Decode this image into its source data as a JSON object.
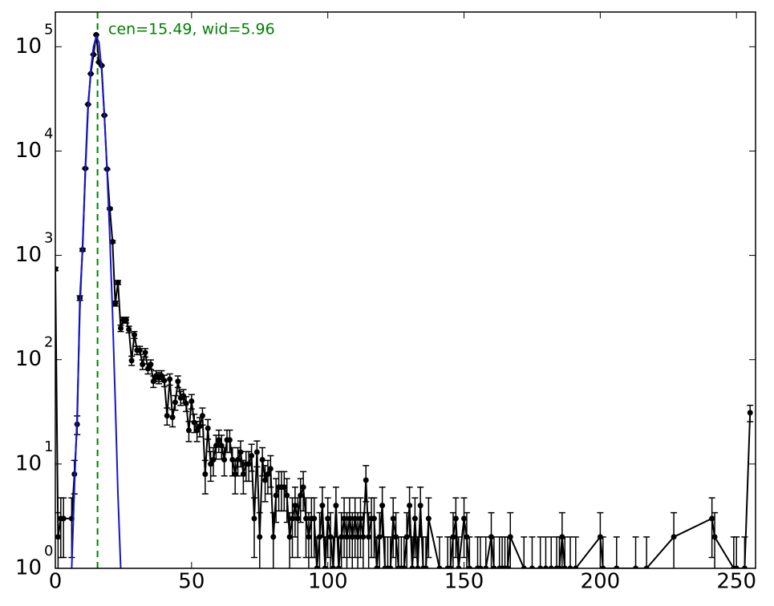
{
  "chart_data": {
    "type": "errorbar",
    "annotation": "cen=15.49, wid=5.96",
    "vline": 15.49,
    "vline_color": "#008000",
    "log_y": true,
    "xlim": [
      0,
      257
    ],
    "ylim": [
      1,
      215000
    ],
    "xticks": [
      0,
      50,
      100,
      150,
      200,
      250
    ],
    "yticks": [
      {
        "value": 1,
        "label": "10",
        "exponent": "0"
      },
      {
        "value": 10,
        "label": "10",
        "exponent": "1"
      },
      {
        "value": 100,
        "label": "10",
        "exponent": "2"
      },
      {
        "value": 1000,
        "label": "10",
        "exponent": "3"
      },
      {
        "value": 10000,
        "label": "10",
        "exponent": "4"
      },
      {
        "value": 100000,
        "label": "10",
        "exponent": "5"
      }
    ],
    "points": {
      "color": "#000000",
      "x": [
        0,
        1,
        2,
        3,
        6,
        7,
        8,
        9,
        10,
        11,
        12,
        13,
        14,
        15,
        16,
        17,
        18,
        19,
        20,
        21,
        22,
        23,
        24,
        25,
        26,
        27,
        28,
        29,
        30,
        31,
        32,
        33,
        34,
        35,
        36,
        37,
        38,
        39,
        40,
        41,
        42,
        43,
        44,
        45,
        46,
        47,
        48,
        49,
        50,
        51,
        52,
        53,
        54,
        55,
        56,
        57,
        58,
        59,
        60,
        61,
        62,
        63,
        64,
        65,
        66,
        67,
        68,
        69,
        70,
        71,
        72,
        73,
        74,
        75,
        76,
        77,
        78,
        79,
        80,
        81,
        82,
        83,
        84,
        85,
        86,
        87,
        88,
        89,
        90,
        91,
        92,
        93,
        94,
        95,
        96,
        97,
        98,
        99,
        100,
        101,
        102,
        103,
        104,
        105,
        106,
        107,
        108,
        109,
        110,
        111,
        112,
        113,
        114,
        115,
        116,
        117,
        118,
        119,
        120,
        121,
        122,
        123,
        124,
        125,
        126,
        127,
        128,
        129,
        130,
        131,
        132,
        133,
        134,
        135,
        136,
        137,
        141,
        144,
        145,
        146,
        147,
        148,
        150,
        151,
        152,
        155,
        156,
        158,
        160,
        161,
        163,
        164,
        165,
        166,
        167,
        172,
        175,
        178,
        180,
        182,
        184,
        185,
        186,
        187,
        189,
        191,
        200,
        201,
        206,
        213,
        217,
        227,
        241,
        242,
        249,
        250,
        253,
        255
      ],
      "values": [
        740,
        2,
        3,
        3,
        3,
        8,
        24,
        390,
        1130,
        6800,
        28000,
        55000,
        84000,
        130000,
        71000,
        66000,
        22000,
        6700,
        2800,
        1350,
        345,
        550,
        200,
        240,
        240,
        195,
        98,
        173,
        123,
        123,
        90,
        117,
        82,
        90,
        62,
        70,
        67,
        70,
        63,
        29,
        65,
        28,
        39,
        62,
        43,
        45,
        38,
        21,
        40,
        25,
        21,
        23,
        29,
        8,
        22,
        10,
        11,
        15,
        17,
        15,
        11,
        17,
        17,
        11,
        8,
        11,
        13,
        8,
        10,
        10,
        12,
        3,
        13,
        2,
        11,
        7,
        8,
        9,
        2,
        5,
        6,
        6,
        6,
        5,
        2,
        3,
        4,
        3,
        5,
        6,
        3,
        2,
        3,
        3,
        1,
        2,
        4,
        1,
        3,
        2,
        1,
        4,
        1,
        2,
        3,
        2,
        3,
        2,
        3,
        2,
        3,
        2,
        7,
        2,
        3,
        3,
        1,
        2,
        4,
        1,
        1,
        1,
        3,
        2,
        1,
        1,
        1,
        2,
        4,
        1,
        3,
        1,
        4,
        1,
        1,
        3,
        1,
        1,
        1,
        2,
        3,
        1,
        3,
        2,
        1,
        1,
        1,
        1,
        2,
        1,
        1,
        1,
        1,
        1,
        2,
        1,
        1,
        1,
        1,
        1,
        1,
        1,
        2,
        1,
        1,
        1,
        2,
        1,
        1,
        1,
        1,
        2,
        3,
        2,
        1,
        1,
        1,
        31
      ],
      "errors": [
        27.2,
        1.41,
        1.73,
        1.73,
        1.73,
        2.83,
        4.9,
        19.75,
        33.62,
        82.46,
        167.3,
        234.5,
        289.8,
        360.6,
        266.5,
        256.9,
        148.3,
        81.85,
        52.92,
        36.74,
        18.57,
        23.45,
        14.14,
        15.49,
        15.49,
        13.96,
        9.9,
        13.15,
        11.09,
        11.09,
        9.49,
        10.82,
        9.06,
        9.49,
        7.87,
        8.37,
        8.19,
        8.37,
        7.94,
        5.39,
        8.06,
        5.29,
        6.24,
        7.87,
        6.56,
        6.71,
        6.16,
        4.58,
        6.32,
        5,
        4.58,
        4.8,
        5.39,
        2.83,
        4.69,
        3.16,
        3.32,
        3.87,
        4.12,
        3.87,
        3.32,
        4.12,
        4.12,
        3.32,
        2.83,
        3.32,
        3.61,
        2.83,
        3.16,
        3.16,
        3.46,
        1.73,
        3.61,
        1.41,
        3.32,
        2.65,
        2.83,
        3,
        1.41,
        2.24,
        2.45,
        2.45,
        2.45,
        2.24,
        1.41,
        1.73,
        2,
        1.73,
        2.24,
        2.45,
        1.73,
        1.41,
        1.73,
        1.73,
        1,
        1.41,
        2,
        1,
        1.73,
        1.41,
        1,
        2,
        1,
        1.41,
        1.73,
        1.41,
        1.73,
        1.41,
        1.73,
        1.41,
        1.73,
        1.41,
        2.65,
        1.41,
        1.73,
        1.73,
        1,
        1.41,
        2,
        1,
        1,
        1,
        1.73,
        1.41,
        1,
        1,
        1,
        1.41,
        2,
        1,
        1.73,
        1,
        2,
        1,
        1,
        1.73,
        1,
        1,
        1,
        1.41,
        1.73,
        1,
        1.73,
        1.41,
        1,
        1,
        1,
        1,
        1.41,
        1,
        1,
        1,
        1,
        1,
        1.41,
        1,
        1,
        1,
        1,
        1,
        1,
        1,
        1.41,
        1,
        1,
        1,
        1.41,
        1,
        1,
        1,
        1,
        1.41,
        1.73,
        1.41,
        1,
        1,
        1,
        5.57
      ]
    },
    "fit": {
      "color": "#1515d0",
      "x": [
        6,
        7,
        8,
        9,
        10,
        11,
        12,
        13,
        14,
        15,
        16,
        17,
        18,
        19,
        20,
        21,
        22,
        23,
        24
      ],
      "values": [
        1,
        6,
        30,
        300,
        1300,
        6000,
        25000,
        60000,
        100000,
        125000,
        110000,
        60000,
        22000,
        6500,
        1500,
        280,
        40,
        5,
        1
      ]
    }
  }
}
